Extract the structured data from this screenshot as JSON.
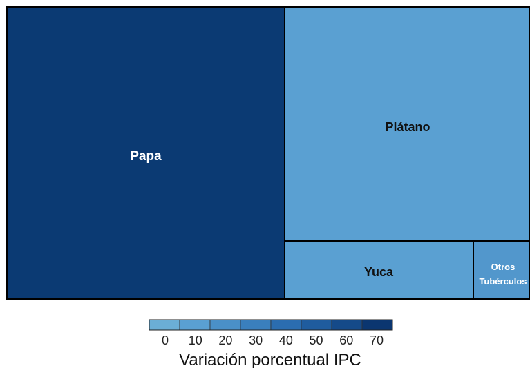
{
  "chart_data": {
    "type": "treemap",
    "tiles": [
      {
        "label": "Papa",
        "value": 70,
        "color": "#0b3a73",
        "label_color": "#ffffff"
      },
      {
        "label": "Plátano",
        "value": 10,
        "color": "#5aa0d2",
        "label_color": "#111111"
      },
      {
        "label": "Yuca",
        "value": 10,
        "color": "#5aa0d2",
        "label_color": "#111111"
      },
      {
        "label": "Otros Tubérculos",
        "value": 10,
        "color": "#5297cc",
        "label_color": "#ffffff"
      }
    ],
    "legend": {
      "title": "Variación porcentual IPC",
      "ticks": [
        0,
        10,
        20,
        30,
        40,
        50,
        60,
        70
      ],
      "colors": [
        "#6baed6",
        "#5aa0d2",
        "#4a90c8",
        "#3a7fbd",
        "#2b6db0",
        "#1f5c9e",
        "#154a89",
        "#0b3670"
      ],
      "position": "bottom"
    }
  }
}
